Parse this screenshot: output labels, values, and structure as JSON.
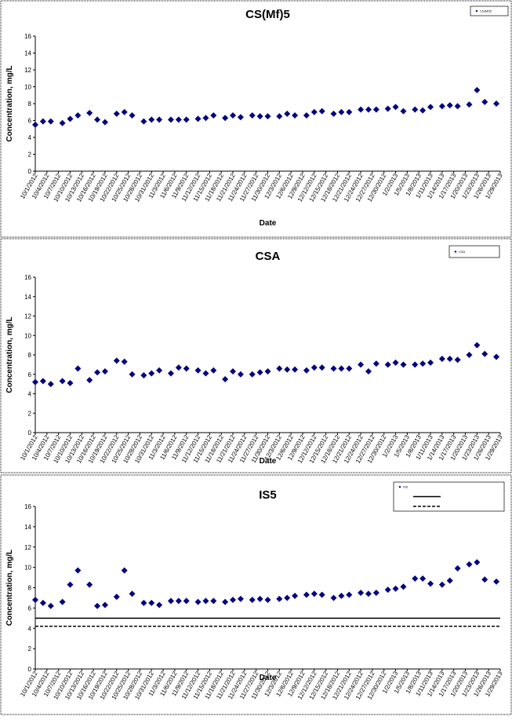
{
  "chart_data": [
    {
      "type": "scatter",
      "title": "CS(Mf)5",
      "xlabel": "Date",
      "ylabel": "Concentration, mg/L",
      "x": [
        "10/1/2012",
        "10/3/2012",
        "10/5/2012",
        "10/8/2012",
        "10/10/2012",
        "10/12/2012",
        "10/15/2012",
        "10/17/2012",
        "10/19/2012",
        "10/22/2012",
        "10/24/2012",
        "10/26/2012",
        "10/29/2012",
        "10/31/2012",
        "11/2/2012",
        "11/5/2012",
        "11/7/2012",
        "11/9/2012",
        "11/12/2012",
        "11/14/2012",
        "11/16/2012",
        "11/19/2012",
        "11/21/2012",
        "11/23/2012",
        "11/26/2012",
        "11/28/2012",
        "11/30/2012",
        "12/3/2012",
        "12/5/2012",
        "12/7/2012",
        "12/10/2012",
        "12/12/2012",
        "12/14/2012",
        "12/17/2012",
        "12/19/2012",
        "12/21/2012",
        "12/24/2012",
        "12/26/2012",
        "12/28/2012",
        "12/31/2012",
        "1/2/2013",
        "1/4/2013",
        "1/7/2013",
        "1/9/2013",
        "1/11/2013",
        "1/14/2013",
        "1/16/2013",
        "1/18/2013",
        "1/21/2013",
        "1/23/2013",
        "1/25/2013",
        "1/28/2013"
      ],
      "series": [
        {
          "name": "CS(Mf)5",
          "color": "#000080",
          "values": [
            5.5,
            5.9,
            5.9,
            5.7,
            6.2,
            6.6,
            6.9,
            6.1,
            5.8,
            6.8,
            7.0,
            6.6,
            5.9,
            6.1,
            6.1,
            6.1,
            6.1,
            6.1,
            6.2,
            6.3,
            6.6,
            6.3,
            6.6,
            6.4,
            6.6,
            6.5,
            6.5,
            6.5,
            6.8,
            6.6,
            6.6,
            7.0,
            7.1,
            6.8,
            7.0,
            7.0,
            7.3,
            7.3,
            7.3,
            7.4,
            7.6,
            7.1,
            7.3,
            7.2,
            7.6,
            7.7,
            7.8,
            7.7,
            7.9,
            9.6,
            8.2,
            8.0
          ]
        }
      ],
      "ylim": [
        0,
        16
      ],
      "yticks": [
        0,
        2,
        4,
        6,
        8,
        10,
        12,
        14,
        16
      ],
      "xlim": [
        "10/1/2012",
        "1/29/2013"
      ],
      "xticks": [
        "10/1/2012",
        "10/4/2012",
        "10/7/2012",
        "10/10/2012",
        "10/13/2012",
        "10/16/2012",
        "10/19/2012",
        "10/22/2012",
        "10/25/2012",
        "10/28/2012",
        "10/31/2012",
        "11/3/2012",
        "11/6/2012",
        "11/9/2012",
        "11/12/2012",
        "11/15/2012",
        "11/18/2012",
        "11/21/2012",
        "11/24/2012",
        "11/27/2012",
        "11/30/2012",
        "12/3/2012",
        "12/6/2012",
        "12/9/2012",
        "12/12/2012",
        "12/15/2012",
        "12/18/2012",
        "12/21/2012",
        "12/24/2012",
        "12/27/2012",
        "12/30/2012",
        "1/2/2013",
        "1/5/2013",
        "1/8/2013",
        "1/11/2013",
        "1/14/2013",
        "1/17/2013",
        "1/20/2013",
        "1/23/2013",
        "1/26/2013",
        "1/29/2013"
      ]
    },
    {
      "type": "scatter",
      "title": "CSA",
      "xlabel": "Date",
      "ylabel": "Concentration, mg/L",
      "x": [
        "10/1/2012",
        "10/3/2012",
        "10/5/2012",
        "10/8/2012",
        "10/10/2012",
        "10/12/2012",
        "10/15/2012",
        "10/17/2012",
        "10/19/2012",
        "10/22/2012",
        "10/24/2012",
        "10/26/2012",
        "10/29/2012",
        "10/31/2012",
        "11/2/2012",
        "11/5/2012",
        "11/7/2012",
        "11/9/2012",
        "11/12/2012",
        "11/14/2012",
        "11/16/2012",
        "11/19/2012",
        "11/21/2012",
        "11/23/2012",
        "11/26/2012",
        "11/28/2012",
        "11/30/2012",
        "12/3/2012",
        "12/5/2012",
        "12/7/2012",
        "12/10/2012",
        "12/12/2012",
        "12/14/2012",
        "12/17/2012",
        "12/19/2012",
        "12/21/2012",
        "12/24/2012",
        "12/26/2012",
        "12/28/2012",
        "12/31/2012",
        "1/2/2013",
        "1/4/2013",
        "1/7/2013",
        "1/9/2013",
        "1/11/2013",
        "1/14/2013",
        "1/16/2013",
        "1/18/2013",
        "1/21/2013",
        "1/23/2013",
        "1/25/2013",
        "1/28/2013"
      ],
      "series": [
        {
          "name": "CSA",
          "color": "#000080",
          "values": [
            5.2,
            5.3,
            5.0,
            5.3,
            5.1,
            6.6,
            5.4,
            6.2,
            6.3,
            7.4,
            7.3,
            6.0,
            5.9,
            6.1,
            6.4,
            6.1,
            6.7,
            6.6,
            6.4,
            6.1,
            6.4,
            5.5,
            6.3,
            6.0,
            6.0,
            6.2,
            6.3,
            6.6,
            6.5,
            6.5,
            6.4,
            6.7,
            6.7,
            6.6,
            6.6,
            6.6,
            7.0,
            6.3,
            7.1,
            7.0,
            7.2,
            7.0,
            7.0,
            7.1,
            7.2,
            7.6,
            7.6,
            7.5,
            8.0,
            9.0,
            8.1,
            7.8
          ]
        }
      ],
      "ylim": [
        0,
        16
      ],
      "yticks": [
        0,
        2,
        4,
        6,
        8,
        10,
        12,
        14,
        16
      ],
      "xlim": [
        "10/1/2012",
        "1/29/2013"
      ],
      "xticks": [
        "10/1/2012",
        "10/4/2012",
        "10/7/2012",
        "10/10/2012",
        "10/13/2012",
        "10/16/2012",
        "10/19/2012",
        "10/22/2012",
        "10/25/2012",
        "10/28/2012",
        "10/31/2012",
        "11/3/2012",
        "11/6/2012",
        "11/9/2012",
        "11/12/2012",
        "11/15/2012",
        "11/18/2012",
        "11/21/2012",
        "11/24/2012",
        "11/27/2012",
        "11/30/2012",
        "12/3/2012",
        "12/6/2012",
        "12/9/2012",
        "12/12/2012",
        "12/15/2012",
        "12/18/2012",
        "12/21/2012",
        "12/24/2012",
        "12/27/2012",
        "12/30/2012",
        "1/2/2013",
        "1/5/2013",
        "1/8/2013",
        "1/11/2013",
        "1/14/2013",
        "1/17/2013",
        "1/20/2013",
        "1/23/2013",
        "1/26/2013",
        "1/29/2013"
      ]
    },
    {
      "type": "scatter",
      "title": "IS5",
      "xlabel": "Date",
      "ylabel": "Concentration, mg/L",
      "x": [
        "10/1/2012",
        "10/3/2012",
        "10/5/2012",
        "10/8/2012",
        "10/10/2012",
        "10/12/2012",
        "10/15/2012",
        "10/17/2012",
        "10/19/2012",
        "10/22/2012",
        "10/24/2012",
        "10/26/2012",
        "10/29/2012",
        "10/31/2012",
        "11/2/2012",
        "11/5/2012",
        "11/7/2012",
        "11/9/2012",
        "11/12/2012",
        "11/14/2012",
        "11/16/2012",
        "11/19/2012",
        "11/21/2012",
        "11/23/2012",
        "11/26/2012",
        "11/28/2012",
        "11/30/2012",
        "12/3/2012",
        "12/5/2012",
        "12/7/2012",
        "12/10/2012",
        "12/12/2012",
        "12/14/2012",
        "12/17/2012",
        "12/19/2012",
        "12/21/2012",
        "12/24/2012",
        "12/26/2012",
        "12/28/2012",
        "12/31/2012",
        "1/2/2013",
        "1/4/2013",
        "1/7/2013",
        "1/9/2013",
        "1/11/2013",
        "1/14/2013",
        "1/16/2013",
        "1/18/2013",
        "1/21/2013",
        "1/23/2013",
        "1/25/2013",
        "1/28/2013"
      ],
      "series": [
        {
          "name": "IS5",
          "color": "#000080",
          "values": [
            6.8,
            6.5,
            6.2,
            6.6,
            8.3,
            9.7,
            8.3,
            6.2,
            6.3,
            7.1,
            9.7,
            7.4,
            6.5,
            6.5,
            6.3,
            6.7,
            6.7,
            6.7,
            6.6,
            6.7,
            6.7,
            6.6,
            6.8,
            6.9,
            6.8,
            6.9,
            6.8,
            6.9,
            7.0,
            7.2,
            7.3,
            7.4,
            7.3,
            7.0,
            7.2,
            7.3,
            7.5,
            7.4,
            7.5,
            7.8,
            7.9,
            8.1,
            8.9,
            8.9,
            8.4,
            8.3,
            8.7,
            9.9,
            10.3,
            10.5,
            8.8,
            8.6
          ]
        }
      ],
      "hlines": [
        {
          "value": 5,
          "style": "solid",
          "color": "#000000"
        },
        {
          "value": 4.2,
          "style": "dashed",
          "color": "#000000"
        }
      ],
      "ylim": [
        0,
        16
      ],
      "yticks": [
        0,
        2,
        4,
        6,
        8,
        10,
        12,
        14,
        16
      ],
      "xlim": [
        "10/1/2012",
        "1/29/2013"
      ],
      "xticks": [
        "10/1/2012",
        "10/4/2012",
        "10/7/2012",
        "10/10/2012",
        "10/13/2012",
        "10/16/2012",
        "10/19/2012",
        "10/22/2012",
        "10/25/2012",
        "10/28/2012",
        "10/31/2012",
        "11/3/2012",
        "11/6/2012",
        "11/9/2012",
        "11/12/2012",
        "11/15/2012",
        "11/18/2012",
        "11/21/2012",
        "11/24/2012",
        "11/27/2012",
        "11/30/2012",
        "12/3/2012",
        "12/6/2012",
        "12/9/2012",
        "12/12/2012",
        "12/15/2012",
        "12/18/2012",
        "12/21/2012",
        "12/24/2012",
        "12/27/2012",
        "12/30/2012",
        "1/2/2013",
        "1/5/2013",
        "1/8/2013",
        "1/11/2013",
        "1/14/2013",
        "1/17/2013",
        "1/20/2013",
        "1/23/2013",
        "1/26/2013",
        "1/29/2013"
      ]
    }
  ]
}
